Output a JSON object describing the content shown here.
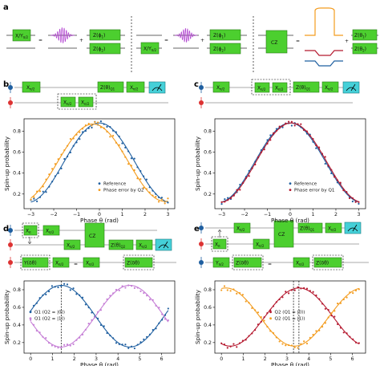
{
  "panels": {
    "a": "a",
    "b": "b",
    "c": "c",
    "d": "d",
    "e": "e"
  },
  "gates": {
    "xy": "X/Y",
    "xy_sub": "π/2",
    "zphi1": "Z(ϕ",
    "zphi1_sub": "1",
    "zphi2": "Z(ϕ",
    "zphi2_sub": "2",
    "ztheta1": "Z(θ",
    "ztheta1_sub": "1",
    "ztheta2": "Z(θ",
    "ztheta2_sub": "2",
    "cz": "CZ",
    "x": "X",
    "x_sub": "π/2",
    "ztheta": "Z(θ)",
    "ztheta_sub": "Q1",
    "ztheta_b": "Z(θ)",
    "ztheta_b_sub": "Q2",
    "ydtheta": "Y(δθ)",
    "zdtheta": "Z(δθ)",
    "pi": "π",
    "y_pi2": "Y",
    "eq": "=",
    "plus": "+"
  },
  "chart_data": [
    {
      "panel": "b",
      "type": "scatter",
      "xlabel": "Phase θ (rad)",
      "ylabel": "Spin-up probability",
      "xlim": [
        -3.3,
        3.3
      ],
      "ylim": [
        0.06,
        0.92
      ],
      "xticks": [
        -3,
        -2,
        -1,
        0,
        1,
        2,
        3
      ],
      "yticks": [
        0.2,
        0.4,
        0.6,
        0.8
      ],
      "legend_position": "bottom-right",
      "series": [
        {
          "name": "Reference",
          "color": "#1f5fa0",
          "model": {
            "amp": 0.38,
            "offset": 0.5,
            "shift": 0.0
          }
        },
        {
          "name": "Phase error by Q2",
          "color": "#f39c1f",
          "model": {
            "amp": 0.37,
            "offset": 0.5,
            "shift": -0.28
          }
        }
      ]
    },
    {
      "panel": "c",
      "type": "scatter",
      "xlabel": "Phase θ (rad)",
      "ylabel": "Spin-up probability",
      "xlim": [
        -3.3,
        3.3
      ],
      "ylim": [
        0.06,
        0.92
      ],
      "xticks": [
        -3,
        -2,
        -1,
        0,
        1,
        2,
        3
      ],
      "yticks": [
        0.2,
        0.4,
        0.6,
        0.8
      ],
      "legend_position": "bottom-right",
      "series": [
        {
          "name": "Reference",
          "color": "#1f5fa0",
          "model": {
            "amp": 0.38,
            "offset": 0.5,
            "shift": 0.0
          }
        },
        {
          "name": "Phase error by Q1",
          "color": "#b5192f",
          "model": {
            "amp": 0.38,
            "offset": 0.5,
            "shift": 0.05
          }
        }
      ]
    },
    {
      "panel": "d",
      "type": "scatter",
      "xlabel": "Phase θ (rad)",
      "ylabel": "Spin-up probability",
      "xlim": [
        -0.3,
        6.6
      ],
      "ylim": [
        0.08,
        0.9
      ],
      "xticks": [
        0,
        1,
        2,
        3,
        4,
        5,
        6
      ],
      "yticks": [
        0.2,
        0.4,
        0.6,
        0.8
      ],
      "legend_position": "center-left",
      "vlines": [
        1.4
      ],
      "series": [
        {
          "name": "Q1 (Q2 = |0⟩)",
          "color": "#1f5fa0",
          "model": {
            "amp": 0.35,
            "offset": 0.5,
            "shift": 1.4
          }
        },
        {
          "name": "Q1 (Q2 = |1⟩)",
          "color": "#c67fd6",
          "model": {
            "amp": 0.35,
            "offset": 0.5,
            "shift": 4.54
          }
        }
      ]
    },
    {
      "panel": "e",
      "type": "scatter",
      "xlabel": "Phase θ (rad)",
      "ylabel": "Spin-up probability",
      "xlim": [
        -0.3,
        6.6
      ],
      "ylim": [
        0.08,
        0.9
      ],
      "xticks": [
        0,
        1,
        2,
        3,
        4,
        5,
        6
      ],
      "yticks": [
        0.2,
        0.4,
        0.6,
        0.8
      ],
      "legend_position": "center",
      "vlines": [
        3.3,
        3.55
      ],
      "series": [
        {
          "name": "Q2 (Q1 = |0⟩)",
          "color": "#b5192f",
          "model": {
            "amp": 0.33,
            "offset": 0.49,
            "shift": 3.55
          }
        },
        {
          "name": "Q2 (Q1 = |1⟩)",
          "color": "#f39c1f",
          "model": {
            "amp": 0.33,
            "offset": 0.49,
            "shift": 0.2
          }
        }
      ]
    }
  ]
}
